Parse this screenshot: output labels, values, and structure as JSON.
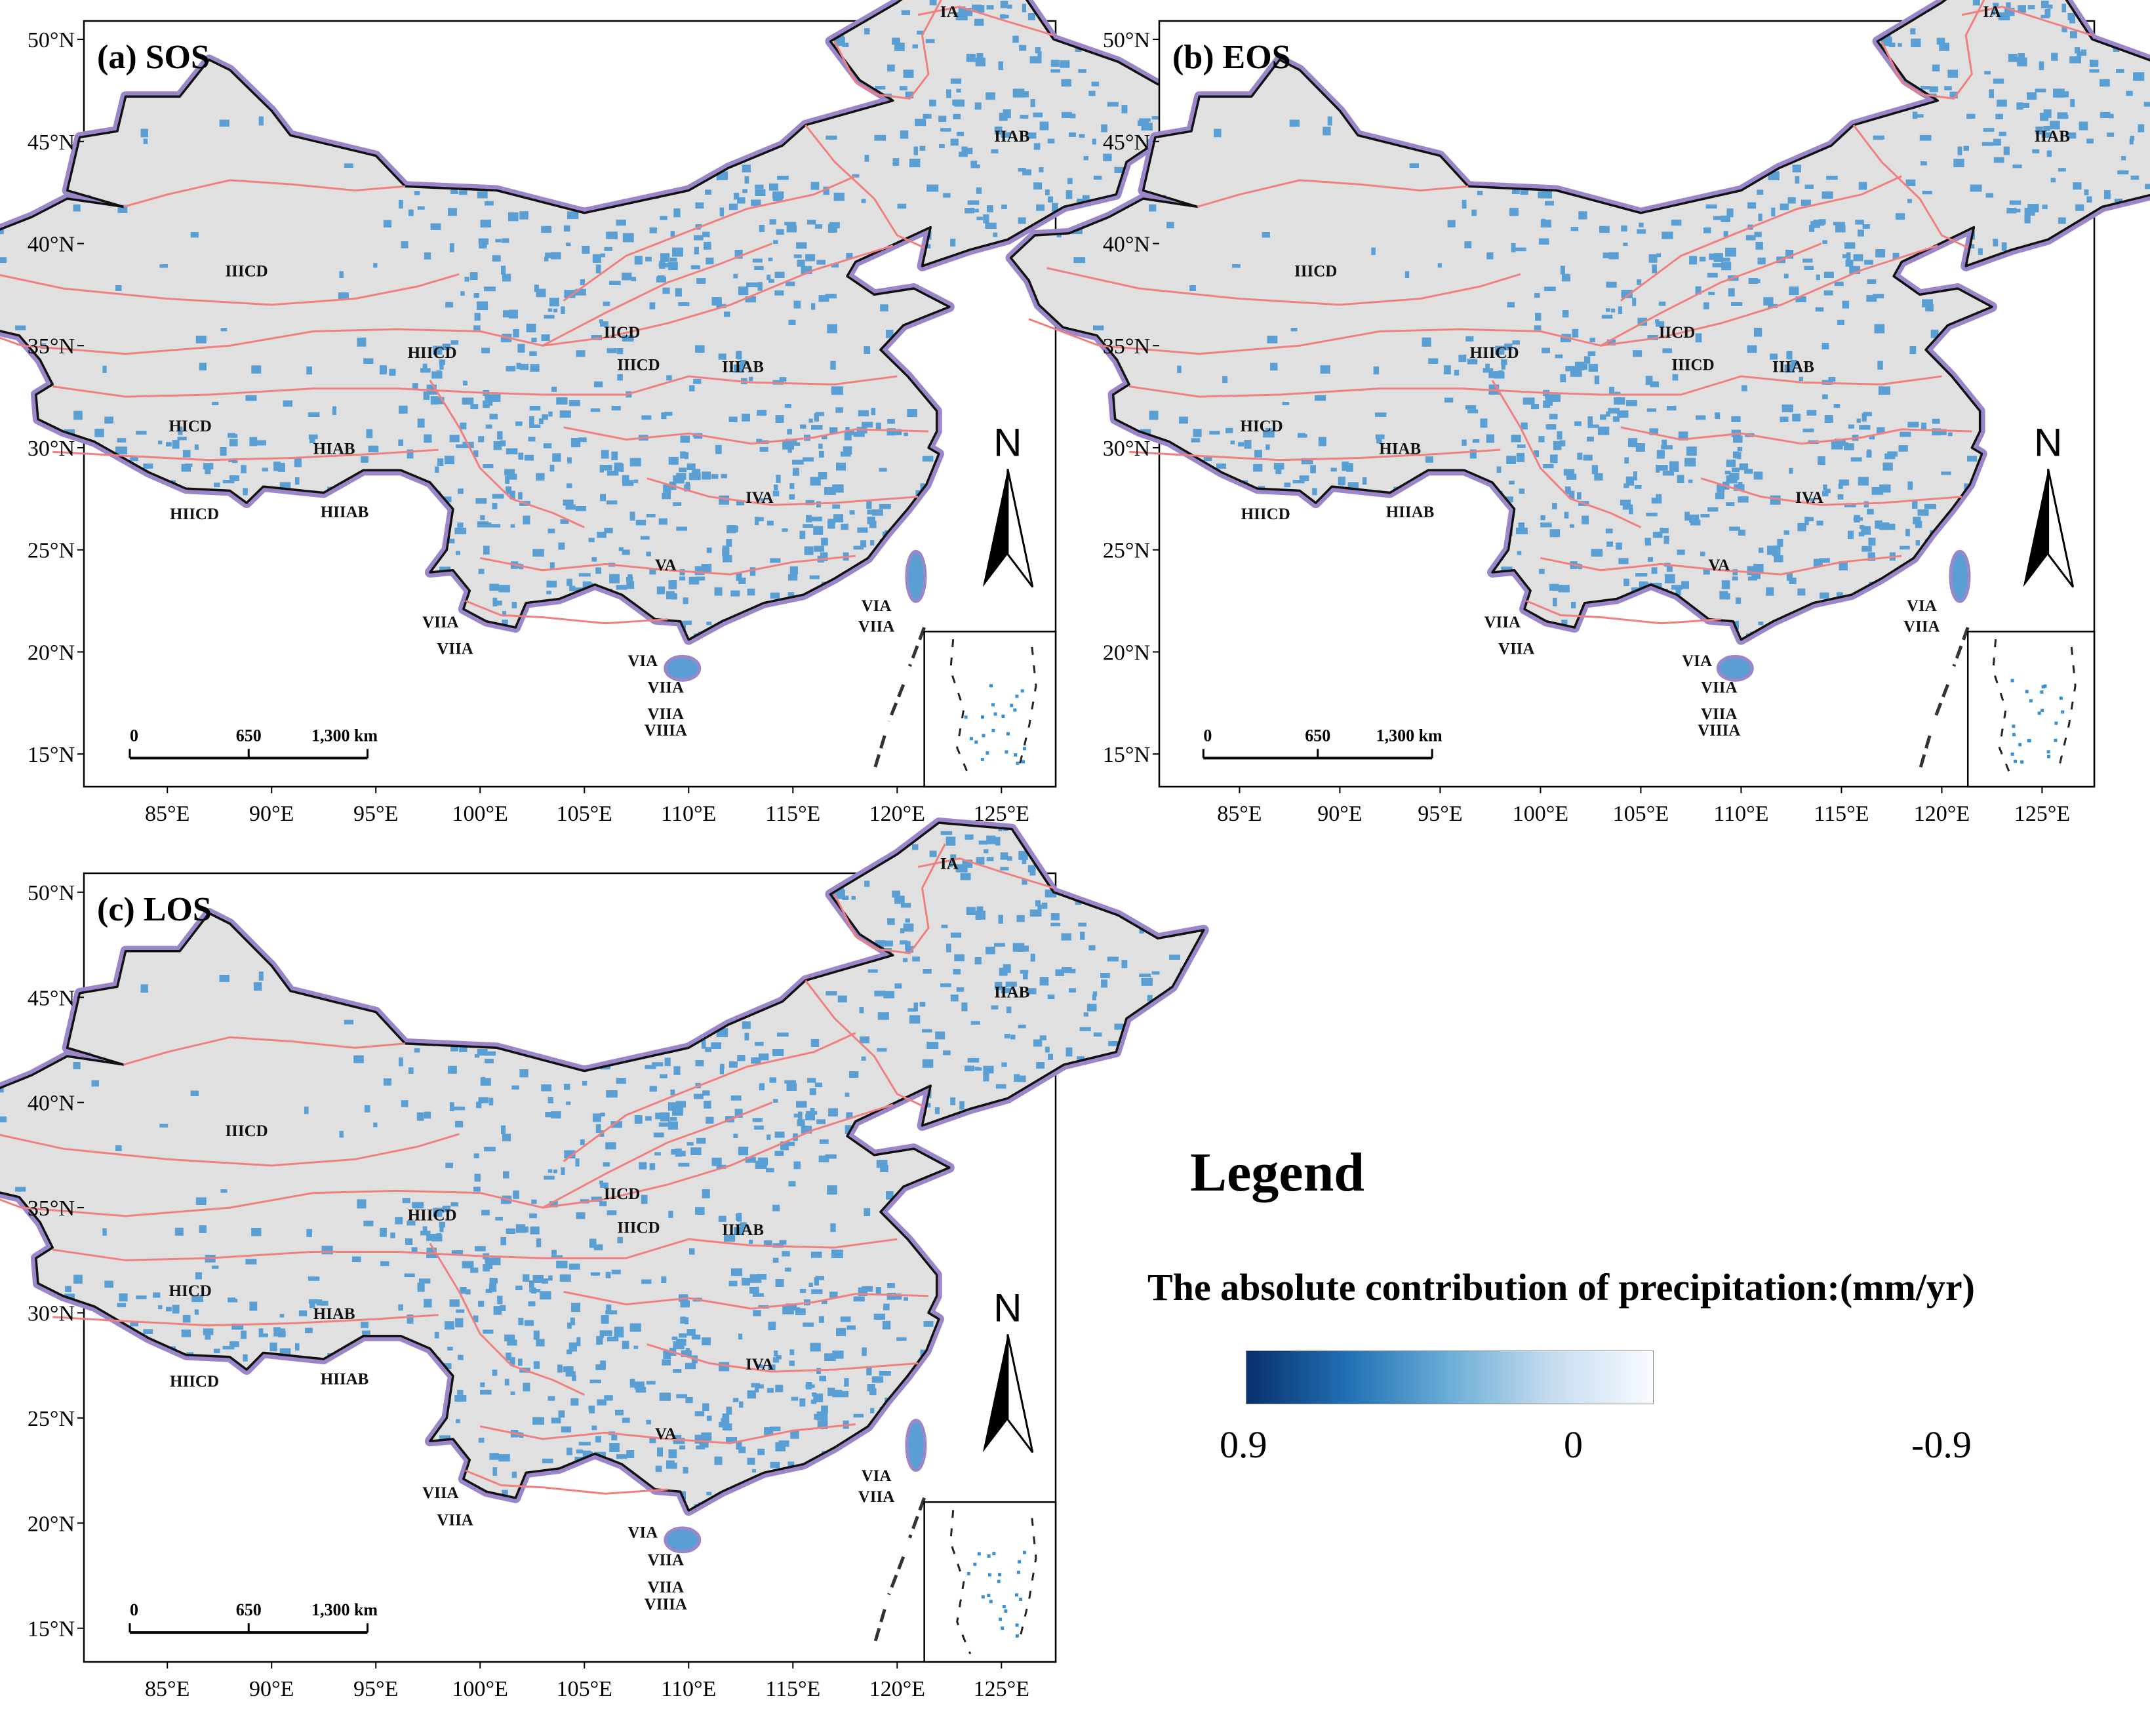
{
  "axes": {
    "lat_labels": [
      "50°N",
      "45°N",
      "40°N",
      "35°N",
      "30°N",
      "25°N",
      "20°N",
      "15°N"
    ],
    "lon_labels": [
      "85°E",
      "90°E",
      "95°E",
      "100°E",
      "105°E",
      "110°E",
      "115°E",
      "120°E",
      "125°E"
    ]
  },
  "panels": [
    {
      "title": "(a) SOS"
    },
    {
      "title": "(b) EOS"
    },
    {
      "title": "(c) LOS"
    }
  ],
  "regions": [
    "IA",
    "IIAB",
    "IIICD",
    "IICD",
    "HIICD",
    "IIICD",
    "IIIAB",
    "HICD",
    "HIAB",
    "HIICD",
    "HIIAB",
    "IVA",
    "VA",
    "VIA",
    "VIIA",
    "VIIA",
    "VIIA",
    "VIA",
    "VIIA",
    "VIIA",
    "VIIIA"
  ],
  "scalebar": {
    "labels": [
      "0",
      "650",
      "1,300 km"
    ]
  },
  "north_arrow": {
    "label": "N"
  },
  "legend": {
    "title": "Legend",
    "subtitle": "The absolute contribution of precipitation:(mm/yr)",
    "labels": [
      "0.9",
      "0",
      "-0.9"
    ],
    "colors": [
      "#08306b",
      "#2171b5",
      "#6baed6",
      "#c6dbef",
      "#f7fbff"
    ]
  },
  "map_colors": {
    "land": "#e0e0e0",
    "pixels": "#5a9fd4",
    "border_halo": "#9a86c8",
    "border": "#111111",
    "zone_lines": "#f08080"
  }
}
